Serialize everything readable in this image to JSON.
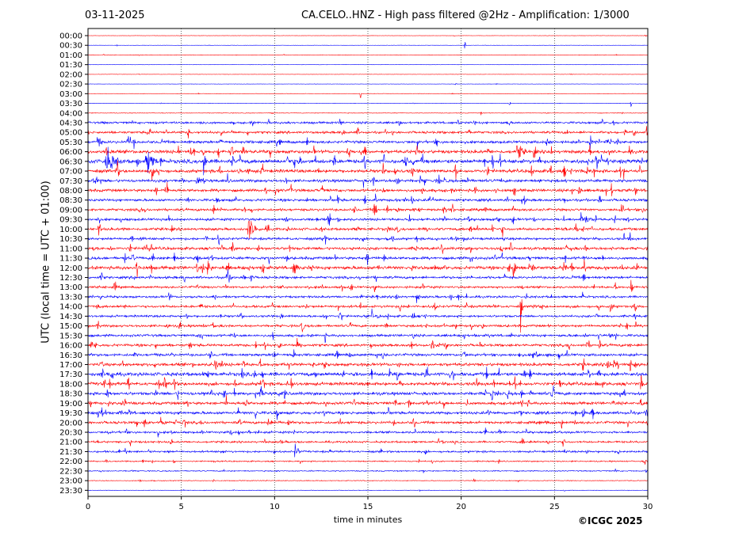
{
  "header": {
    "date": "03-11-2025",
    "station_title": "CA.CELO..HNZ - High pass filtered @2Hz - Amplification: 1/3000"
  },
  "copyright": "©ICGC 2025",
  "chart_data": {
    "type": "line",
    "title": "CA.CELO..HNZ - High pass filtered @2Hz - Amplification: 1/3000",
    "xlabel": "time in minutes",
    "ylabel": "UTC (local time = UTC + 01:00)",
    "xlim": [
      0,
      30
    ],
    "x_ticks": [
      "0",
      "5",
      "10",
      "15",
      "20",
      "25",
      "30"
    ],
    "grid": "vertical dotted lines at 5, 10, 15, 20, 25",
    "rows": [
      "00:00",
      "00:30",
      "01:00",
      "01:30",
      "02:00",
      "02:30",
      "03:00",
      "03:30",
      "04:00",
      "04:30",
      "05:00",
      "05:30",
      "06:00",
      "06:30",
      "07:00",
      "07:30",
      "08:00",
      "08:30",
      "09:00",
      "09:30",
      "10:00",
      "10:30",
      "11:00",
      "11:30",
      "12:00",
      "12:30",
      "13:00",
      "13:30",
      "14:00",
      "14:30",
      "15:00",
      "15:30",
      "16:00",
      "16:30",
      "17:00",
      "17:30",
      "18:00",
      "18:30",
      "19:00",
      "19:30",
      "20:00",
      "20:30",
      "21:00",
      "21:30",
      "22:00",
      "22:30",
      "23:00",
      "23:30"
    ],
    "trace_colors": [
      "#ff0000",
      "#0000ff"
    ],
    "row_noise_levels": [
      0.3,
      0.3,
      0.5,
      0.3,
      0.3,
      0.3,
      0.4,
      0.4,
      0.6,
      2.0,
      2.2,
      2.5,
      3.0,
      3.5,
      3.0,
      2.6,
      2.6,
      2.3,
      2.3,
      2.3,
      2.4,
      2.2,
      2.5,
      2.5,
      3.0,
      2.2,
      2.0,
      2.0,
      2.2,
      2.0,
      2.2,
      2.2,
      2.4,
      2.4,
      2.8,
      3.2,
      3.0,
      2.8,
      2.6,
      2.6,
      2.4,
      2.0,
      1.8,
      1.8,
      1.2,
      1.0,
      0.7,
      0.5
    ],
    "events": [
      {
        "row": 1,
        "minute": 20.2,
        "amplitude": 5,
        "duration": 0.1
      },
      {
        "row": 6,
        "minute": 14.6,
        "amplitude": 5,
        "duration": 0.1
      },
      {
        "row": 7,
        "minute": 22.6,
        "amplitude": 5,
        "duration": 0.1
      },
      {
        "row": 7,
        "minute": 29.1,
        "amplitude": 5,
        "duration": 0.1
      },
      {
        "row": 11,
        "minute": 0.5,
        "amplitude": 12,
        "duration": 0.3
      },
      {
        "row": 12,
        "minute": 23.0,
        "amplitude": 12,
        "duration": 0.6
      },
      {
        "row": 13,
        "minute": 0.9,
        "amplitude": 14,
        "duration": 1.2
      },
      {
        "row": 13,
        "minute": 3.2,
        "amplitude": 14,
        "duration": 0.7
      },
      {
        "row": 13,
        "minute": 6.2,
        "amplitude": 16,
        "duration": 0.4
      },
      {
        "row": 14,
        "minute": 16.4,
        "amplitude": 9,
        "duration": 0.3
      },
      {
        "row": 17,
        "minute": 6.9,
        "amplitude": 8,
        "duration": 0.2
      },
      {
        "row": 18,
        "minute": 15.3,
        "amplitude": 12,
        "duration": 0.3
      },
      {
        "row": 18,
        "minute": 19.5,
        "amplitude": 8,
        "duration": 0.2
      },
      {
        "row": 19,
        "minute": 26.4,
        "amplitude": 9,
        "duration": 0.8
      },
      {
        "row": 20,
        "minute": 8.6,
        "amplitude": 12,
        "duration": 0.8
      },
      {
        "row": 24,
        "minute": 2.6,
        "amplitude": 13,
        "duration": 0.3
      },
      {
        "row": 24,
        "minute": 11.0,
        "amplitude": 8,
        "duration": 0.5
      },
      {
        "row": 24,
        "minute": 22.8,
        "amplitude": 14,
        "duration": 0.3
      },
      {
        "row": 25,
        "minute": 7.4,
        "amplitude": 8,
        "duration": 0.6
      },
      {
        "row": 26,
        "minute": 29.1,
        "amplitude": 8,
        "duration": 0.3
      },
      {
        "row": 27,
        "minute": 17.6,
        "amplitude": 7,
        "duration": 0.3
      },
      {
        "row": 27,
        "minute": 19.4,
        "amplitude": 7,
        "duration": 0.2
      },
      {
        "row": 28,
        "minute": 23.2,
        "amplitude": 30,
        "duration": 0.1
      },
      {
        "row": 28,
        "minute": 28.0,
        "amplitude": 7,
        "duration": 0.3
      },
      {
        "row": 28,
        "minute": 29.3,
        "amplitude": 7,
        "duration": 0.3
      },
      {
        "row": 32,
        "minute": 11.2,
        "amplitude": 8,
        "duration": 0.5
      },
      {
        "row": 32,
        "minute": 18.4,
        "amplitude": 7,
        "duration": 0.3
      },
      {
        "row": 40,
        "minute": 3.9,
        "amplitude": 9,
        "duration": 0.4
      },
      {
        "row": 40,
        "minute": 9.6,
        "amplitude": 8,
        "duration": 0.4
      },
      {
        "row": 43,
        "minute": 11.1,
        "amplitude": 8,
        "duration": 0.4
      },
      {
        "row": 46,
        "minute": 20.7,
        "amplitude": 4,
        "duration": 0.1
      }
    ]
  }
}
